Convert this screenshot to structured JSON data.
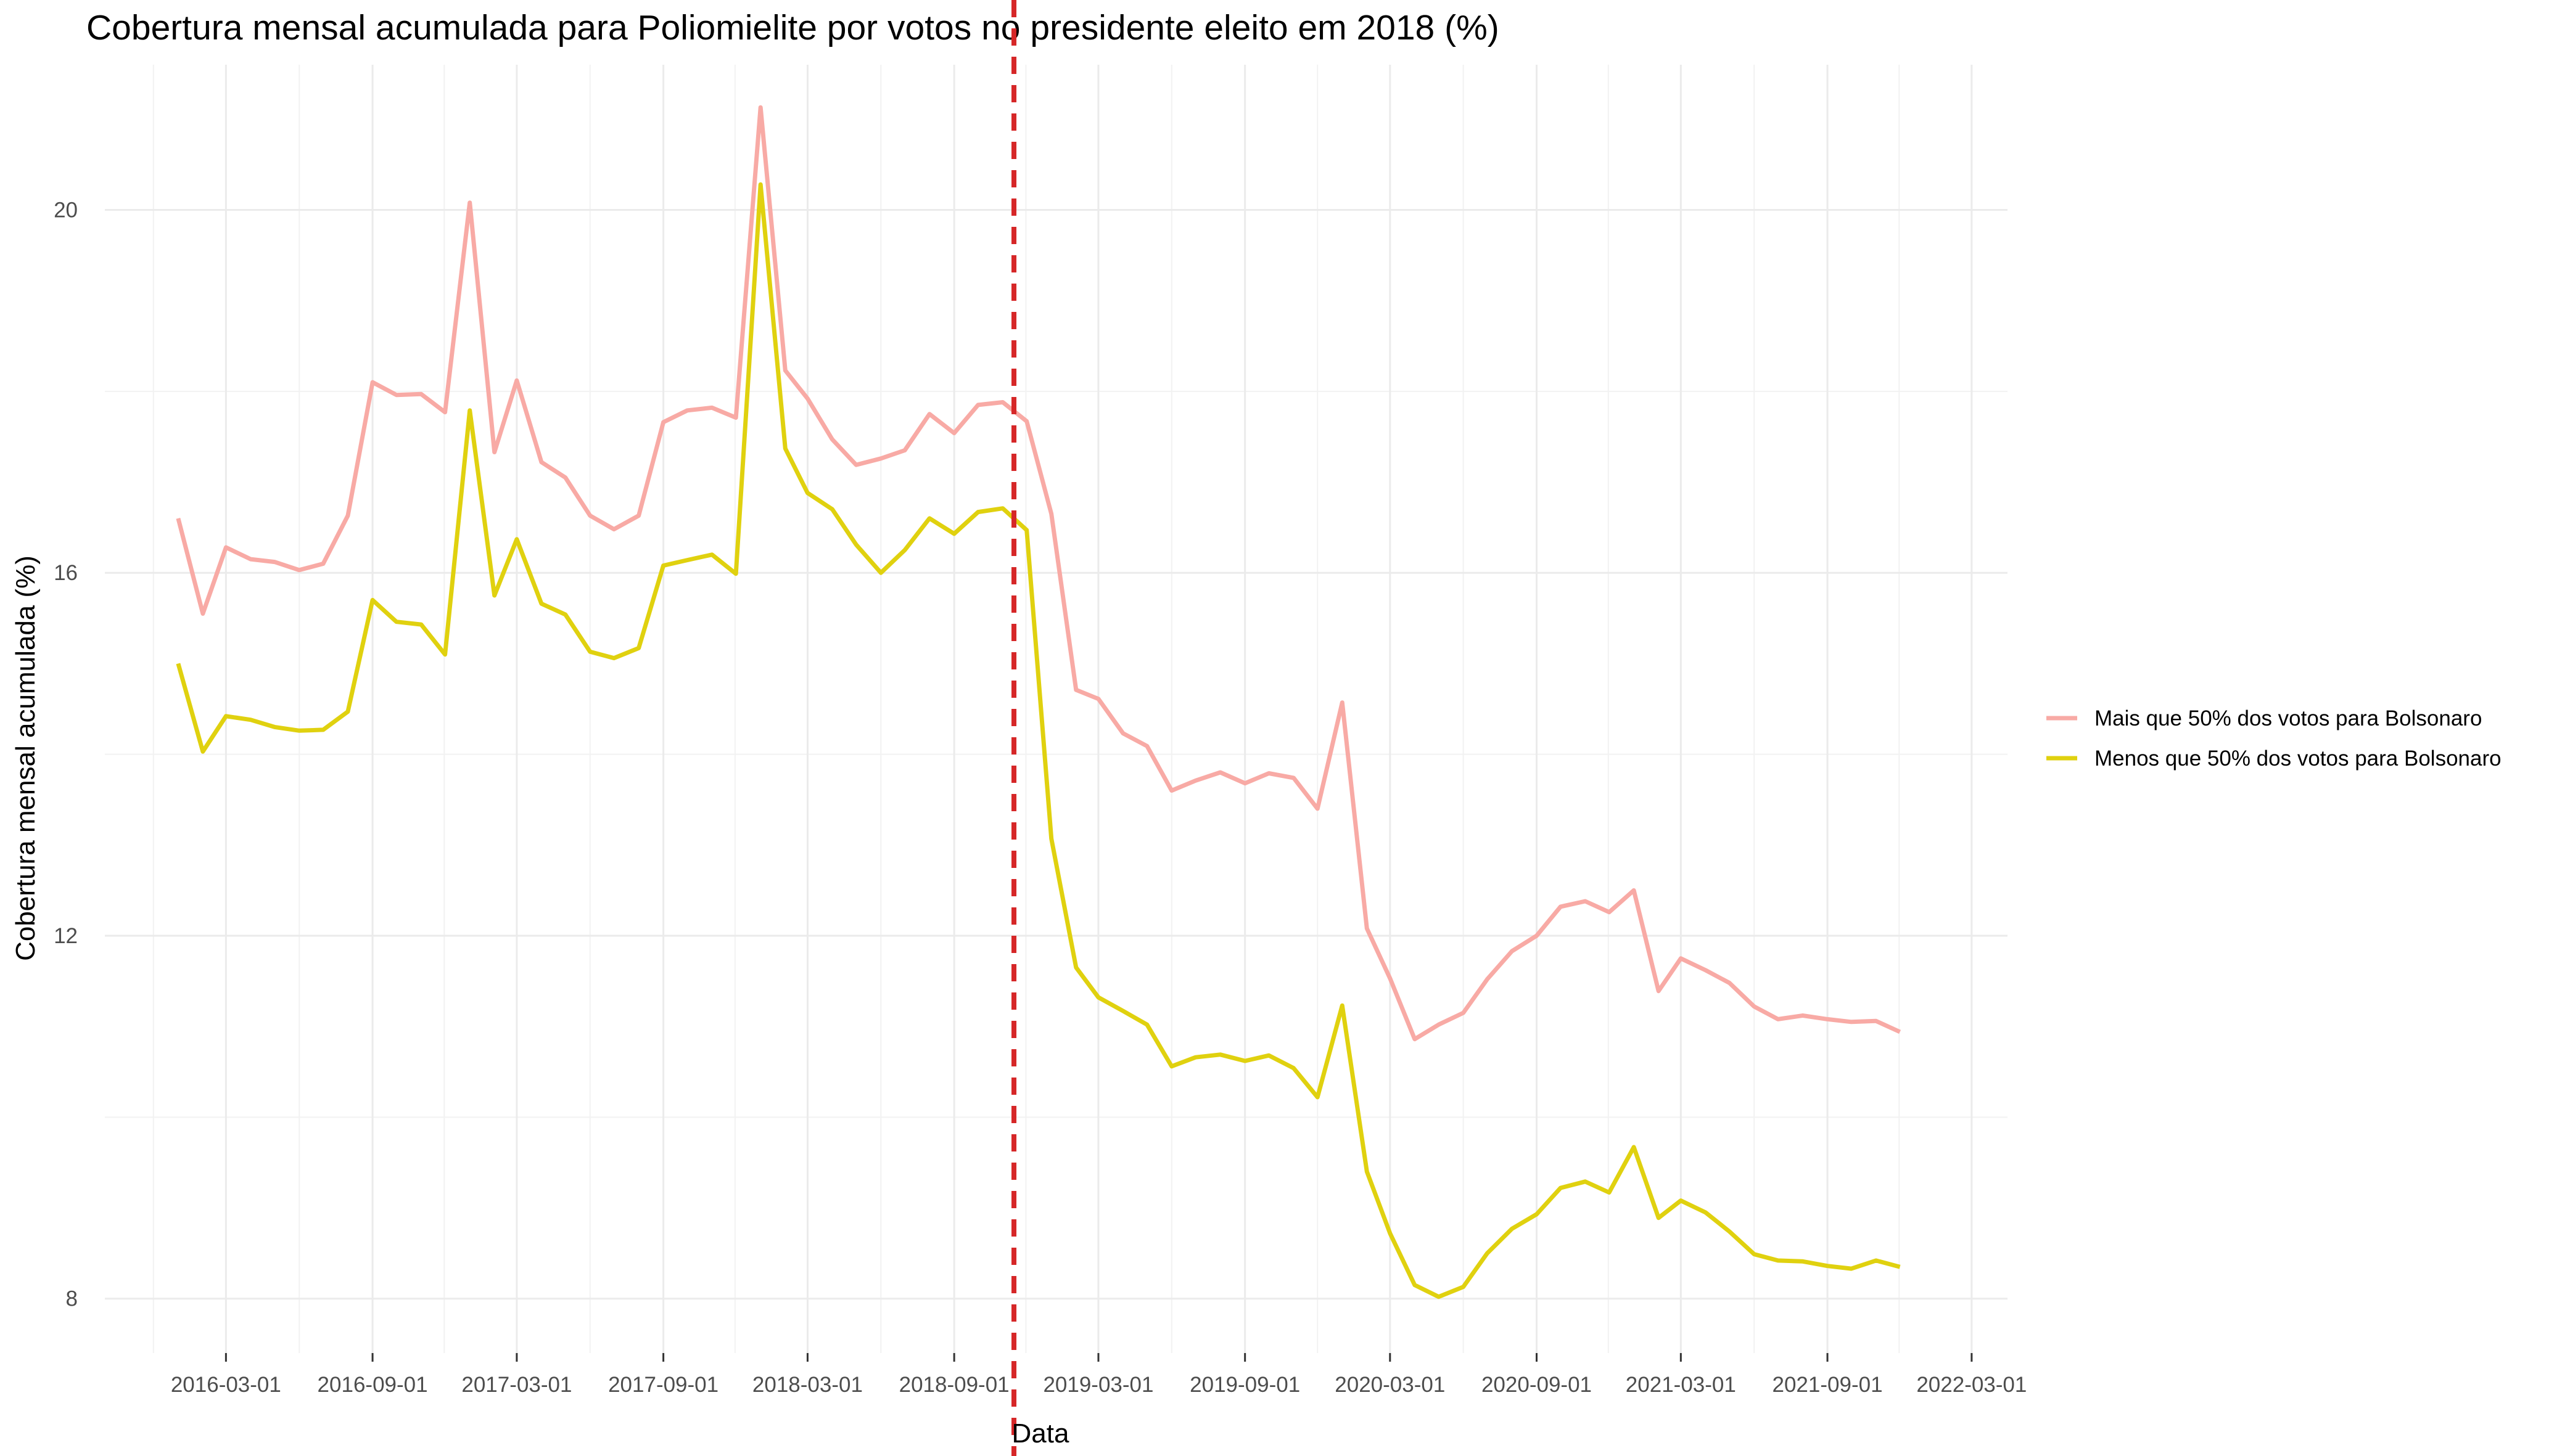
{
  "chart_data": {
    "type": "line",
    "title": "Cobertura mensal acumulada para Poliomielite por votos no presidente eleito em 2018 (%)",
    "xlabel": "Data",
    "ylabel": "Cobertura mensal acumulada (%)",
    "x_ticks": [
      "2016-03-01",
      "2016-09-01",
      "2017-03-01",
      "2017-09-01",
      "2018-03-01",
      "2018-09-01",
      "2019-03-01",
      "2019-09-01",
      "2020-03-01",
      "2020-09-01",
      "2021-03-01",
      "2021-09-01",
      "2022-03-01"
    ],
    "y_ticks": [
      8,
      12,
      16,
      20
    ],
    "ylim": [
      7.4,
      21.6
    ],
    "xlim": [
      "2015-10-01",
      "2022-04-15"
    ],
    "grid": true,
    "legend_position": "right",
    "reference_line": {
      "x": "2018-11-15",
      "color": "#d62728",
      "style": "dashed"
    },
    "x": [
      "2016-01-01",
      "2016-02-01",
      "2016-03-01",
      "2016-04-01",
      "2016-05-01",
      "2016-06-01",
      "2016-07-01",
      "2016-08-01",
      "2016-09-01",
      "2016-10-01",
      "2016-11-01",
      "2016-12-01",
      "2017-01-01",
      "2017-02-01",
      "2017-03-01",
      "2017-04-01",
      "2017-05-01",
      "2017-06-01",
      "2017-07-01",
      "2017-08-01",
      "2017-09-01",
      "2017-10-01",
      "2017-11-01",
      "2017-12-01",
      "2018-01-01",
      "2018-02-01",
      "2018-03-01",
      "2018-04-01",
      "2018-05-01",
      "2018-06-01",
      "2018-07-01",
      "2018-08-01",
      "2018-09-01",
      "2018-10-01",
      "2018-11-01",
      "2018-12-01",
      "2019-01-01",
      "2019-02-01",
      "2019-03-01",
      "2019-04-01",
      "2019-05-01",
      "2019-06-01",
      "2019-07-01",
      "2019-08-01",
      "2019-09-01",
      "2019-10-01",
      "2019-11-01",
      "2019-12-01",
      "2020-01-01",
      "2020-02-01",
      "2020-03-01",
      "2020-04-01",
      "2020-05-01",
      "2020-06-01",
      "2020-07-01",
      "2020-08-01",
      "2020-09-01",
      "2020-10-01",
      "2020-11-01",
      "2020-12-01",
      "2021-01-01",
      "2021-02-01",
      "2021-03-01",
      "2021-04-01",
      "2021-05-01",
      "2021-06-01",
      "2021-07-01",
      "2021-08-01",
      "2021-09-01",
      "2021-10-01",
      "2021-11-01",
      "2021-12-01"
    ],
    "series": [
      {
        "name": "Mais que 50% dos votos para Bolsonaro",
        "color": "#f8aaa5",
        "values": [
          16.6,
          15.55,
          16.28,
          16.15,
          16.12,
          16.03,
          16.1,
          16.63,
          18.1,
          17.96,
          17.97,
          17.77,
          20.08,
          17.33,
          18.12,
          17.22,
          17.05,
          16.63,
          16.48,
          16.63,
          17.66,
          17.79,
          17.82,
          17.71,
          21.13,
          18.23,
          17.92,
          17.47,
          17.19,
          17.26,
          17.35,
          17.75,
          17.54,
          17.85,
          17.88,
          17.67,
          16.65,
          14.71,
          14.61,
          14.23,
          14.09,
          13.6,
          13.71,
          13.8,
          13.68,
          13.79,
          13.74,
          13.4,
          14.57,
          12.08,
          11.53,
          10.86,
          11.02,
          11.15,
          11.52,
          11.83,
          12.0,
          12.32,
          12.38,
          12.26,
          12.5,
          11.39,
          11.75,
          11.62,
          11.48,
          11.22,
          11.08,
          11.12,
          11.08,
          11.05,
          11.06,
          10.94
        ]
      },
      {
        "name": "Menos que 50% dos votos para Bolsonaro",
        "color": "#e0d10f",
        "values": [
          15.0,
          14.03,
          14.42,
          14.38,
          14.3,
          14.26,
          14.27,
          14.47,
          15.7,
          15.46,
          15.43,
          15.1,
          17.79,
          15.75,
          16.37,
          15.66,
          15.54,
          15.13,
          15.06,
          15.17,
          16.08,
          16.14,
          16.2,
          15.99,
          20.28,
          17.37,
          16.88,
          16.7,
          16.31,
          16.0,
          16.25,
          16.6,
          16.43,
          16.67,
          16.71,
          16.47,
          13.07,
          11.65,
          11.32,
          11.17,
          11.02,
          10.56,
          10.66,
          10.69,
          10.62,
          10.68,
          10.54,
          10.22,
          11.23,
          9.4,
          8.72,
          8.15,
          8.02,
          8.13,
          8.5,
          8.77,
          8.93,
          9.22,
          9.29,
          9.17,
          9.67,
          8.89,
          9.08,
          8.95,
          8.74,
          8.49,
          8.42,
          8.41,
          8.36,
          8.33,
          8.42,
          8.35
        ]
      }
    ]
  }
}
